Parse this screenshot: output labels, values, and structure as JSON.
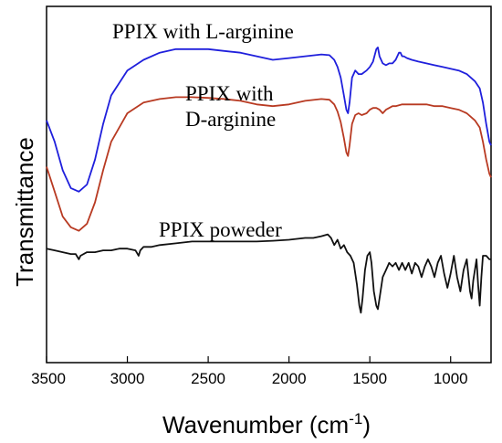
{
  "chart_data": {
    "type": "line",
    "xlabel": "Wavenumber (cm",
    "xlabel_sup": "-1",
    "xlabel_close": ")",
    "ylabel": "Transmittance",
    "xlim": [
      3500,
      750
    ],
    "x_reversed": true,
    "y_ticks_shown": false,
    "grid": false,
    "x_ticks": [
      {
        "value": 3500,
        "label": "3500"
      },
      {
        "value": 3000,
        "label": "3000"
      },
      {
        "value": 2500,
        "label": "2500"
      },
      {
        "value": 2000,
        "label": "2000"
      },
      {
        "value": 1500,
        "label": "1500"
      },
      {
        "value": 1000,
        "label": "1000"
      }
    ],
    "annotations": [
      {
        "id": "l",
        "lines": [
          "PPIX with L-arginine"
        ]
      },
      {
        "id": "d",
        "lines": [
          "PPIX with",
          "D-arginine"
        ]
      },
      {
        "id": "p",
        "lines": [
          "PPIX poweder"
        ]
      }
    ],
    "ylim": [
      0,
      100
    ],
    "series": [
      {
        "id": "l-arginine",
        "color": "#1f1fdc",
        "points": [
          [
            3500,
            68
          ],
          [
            3450,
            62
          ],
          [
            3400,
            54
          ],
          [
            3350,
            49
          ],
          [
            3300,
            48
          ],
          [
            3250,
            50
          ],
          [
            3200,
            57
          ],
          [
            3150,
            67
          ],
          [
            3100,
            75
          ],
          [
            3000,
            82
          ],
          [
            2900,
            85
          ],
          [
            2800,
            87
          ],
          [
            2700,
            88
          ],
          [
            2600,
            88
          ],
          [
            2500,
            88
          ],
          [
            2400,
            87.5
          ],
          [
            2300,
            87
          ],
          [
            2200,
            86
          ],
          [
            2100,
            85
          ],
          [
            2000,
            85.5
          ],
          [
            1900,
            86
          ],
          [
            1800,
            86.5
          ],
          [
            1750,
            86.3
          ],
          [
            1720,
            85
          ],
          [
            1700,
            83
          ],
          [
            1680,
            80
          ],
          [
            1660,
            75
          ],
          [
            1645,
            71
          ],
          [
            1635,
            70
          ],
          [
            1625,
            73
          ],
          [
            1610,
            80
          ],
          [
            1590,
            82
          ],
          [
            1570,
            81
          ],
          [
            1550,
            81
          ],
          [
            1520,
            82
          ],
          [
            1500,
            83
          ],
          [
            1480,
            84.5
          ],
          [
            1460,
            88
          ],
          [
            1450,
            88.5
          ],
          [
            1440,
            86
          ],
          [
            1420,
            84
          ],
          [
            1400,
            83.5
          ],
          [
            1380,
            84
          ],
          [
            1360,
            84
          ],
          [
            1340,
            85
          ],
          [
            1320,
            87
          ],
          [
            1310,
            87
          ],
          [
            1300,
            86
          ],
          [
            1290,
            86
          ],
          [
            1270,
            85.5
          ],
          [
            1240,
            85
          ],
          [
            1200,
            84.5
          ],
          [
            1150,
            84
          ],
          [
            1100,
            83.5
          ],
          [
            1050,
            83
          ],
          [
            1000,
            82.5
          ],
          [
            950,
            82
          ],
          [
            900,
            81
          ],
          [
            850,
            79
          ],
          [
            820,
            77
          ],
          [
            800,
            73
          ],
          [
            780,
            67
          ],
          [
            760,
            62
          ],
          [
            750,
            61
          ]
        ]
      },
      {
        "id": "d-arginine",
        "color": "#b83a22",
        "points": [
          [
            3500,
            55
          ],
          [
            3450,
            48
          ],
          [
            3400,
            41
          ],
          [
            3350,
            38
          ],
          [
            3300,
            37
          ],
          [
            3250,
            39
          ],
          [
            3200,
            45
          ],
          [
            3150,
            54
          ],
          [
            3100,
            62
          ],
          [
            3000,
            70
          ],
          [
            2900,
            73
          ],
          [
            2800,
            74
          ],
          [
            2700,
            74.5
          ],
          [
            2600,
            74.5
          ],
          [
            2500,
            74.3
          ],
          [
            2400,
            74
          ],
          [
            2300,
            73.5
          ],
          [
            2200,
            72.5
          ],
          [
            2100,
            72
          ],
          [
            2000,
            72.5
          ],
          [
            1900,
            73.5
          ],
          [
            1800,
            74
          ],
          [
            1750,
            73.8
          ],
          [
            1720,
            72.5
          ],
          [
            1700,
            70.5
          ],
          [
            1680,
            67.5
          ],
          [
            1660,
            63
          ],
          [
            1645,
            59
          ],
          [
            1635,
            58
          ],
          [
            1625,
            61
          ],
          [
            1610,
            67
          ],
          [
            1590,
            69.5
          ],
          [
            1570,
            70
          ],
          [
            1550,
            69.5
          ],
          [
            1520,
            70
          ],
          [
            1500,
            71
          ],
          [
            1480,
            71.5
          ],
          [
            1460,
            71.5
          ],
          [
            1440,
            71
          ],
          [
            1420,
            70
          ],
          [
            1400,
            71
          ],
          [
            1380,
            71.5
          ],
          [
            1360,
            72
          ],
          [
            1340,
            72
          ],
          [
            1300,
            72.5
          ],
          [
            1250,
            72.5
          ],
          [
            1200,
            72.5
          ],
          [
            1150,
            72.5
          ],
          [
            1100,
            72
          ],
          [
            1050,
            72
          ],
          [
            1000,
            71.5
          ],
          [
            950,
            71
          ],
          [
            900,
            70
          ],
          [
            850,
            68
          ],
          [
            820,
            66
          ],
          [
            800,
            62
          ],
          [
            780,
            57
          ],
          [
            760,
            53
          ],
          [
            750,
            52
          ]
        ]
      },
      {
        "id": "ppix-powder",
        "color": "#111111",
        "points": [
          [
            3500,
            32
          ],
          [
            3450,
            31.5
          ],
          [
            3400,
            31
          ],
          [
            3350,
            30.5
          ],
          [
            3320,
            30.5
          ],
          [
            3300,
            29
          ],
          [
            3290,
            30
          ],
          [
            3250,
            31
          ],
          [
            3200,
            31
          ],
          [
            3150,
            31.5
          ],
          [
            3100,
            31.5
          ],
          [
            3050,
            32
          ],
          [
            3000,
            32
          ],
          [
            2950,
            31.5
          ],
          [
            2930,
            30
          ],
          [
            2920,
            31.5
          ],
          [
            2900,
            32.5
          ],
          [
            2850,
            32.5
          ],
          [
            2800,
            33
          ],
          [
            2700,
            33.5
          ],
          [
            2600,
            34
          ],
          [
            2500,
            34
          ],
          [
            2400,
            34
          ],
          [
            2300,
            34
          ],
          [
            2200,
            34
          ],
          [
            2100,
            34.2
          ],
          [
            2000,
            34.5
          ],
          [
            1900,
            35
          ],
          [
            1850,
            35
          ],
          [
            1800,
            35.5
          ],
          [
            1760,
            36
          ],
          [
            1740,
            35
          ],
          [
            1720,
            33
          ],
          [
            1700,
            34.5
          ],
          [
            1680,
            32
          ],
          [
            1660,
            33
          ],
          [
            1640,
            31
          ],
          [
            1620,
            30
          ],
          [
            1600,
            28
          ],
          [
            1580,
            22
          ],
          [
            1565,
            16
          ],
          [
            1555,
            14
          ],
          [
            1545,
            18
          ],
          [
            1530,
            26
          ],
          [
            1515,
            30
          ],
          [
            1500,
            31
          ],
          [
            1490,
            28
          ],
          [
            1475,
            20
          ],
          [
            1460,
            16
          ],
          [
            1450,
            15
          ],
          [
            1440,
            18
          ],
          [
            1420,
            24
          ],
          [
            1400,
            26
          ],
          [
            1380,
            28
          ],
          [
            1360,
            27
          ],
          [
            1340,
            28
          ],
          [
            1320,
            26
          ],
          [
            1300,
            28
          ],
          [
            1280,
            26
          ],
          [
            1260,
            28
          ],
          [
            1240,
            25
          ],
          [
            1220,
            28
          ],
          [
            1200,
            27
          ],
          [
            1180,
            24
          ],
          [
            1160,
            27
          ],
          [
            1140,
            29
          ],
          [
            1120,
            27
          ],
          [
            1100,
            24
          ],
          [
            1080,
            28
          ],
          [
            1060,
            30
          ],
          [
            1040,
            25
          ],
          [
            1020,
            21
          ],
          [
            1000,
            25
          ],
          [
            980,
            30
          ],
          [
            960,
            24
          ],
          [
            940,
            20
          ],
          [
            920,
            26
          ],
          [
            900,
            29
          ],
          [
            880,
            20
          ],
          [
            870,
            18
          ],
          [
            860,
            23
          ],
          [
            840,
            29
          ],
          [
            830,
            22
          ],
          [
            820,
            16
          ],
          [
            810,
            24
          ],
          [
            800,
            30
          ],
          [
            780,
            30
          ],
          [
            760,
            29
          ],
          [
            750,
            29
          ]
        ]
      }
    ]
  }
}
